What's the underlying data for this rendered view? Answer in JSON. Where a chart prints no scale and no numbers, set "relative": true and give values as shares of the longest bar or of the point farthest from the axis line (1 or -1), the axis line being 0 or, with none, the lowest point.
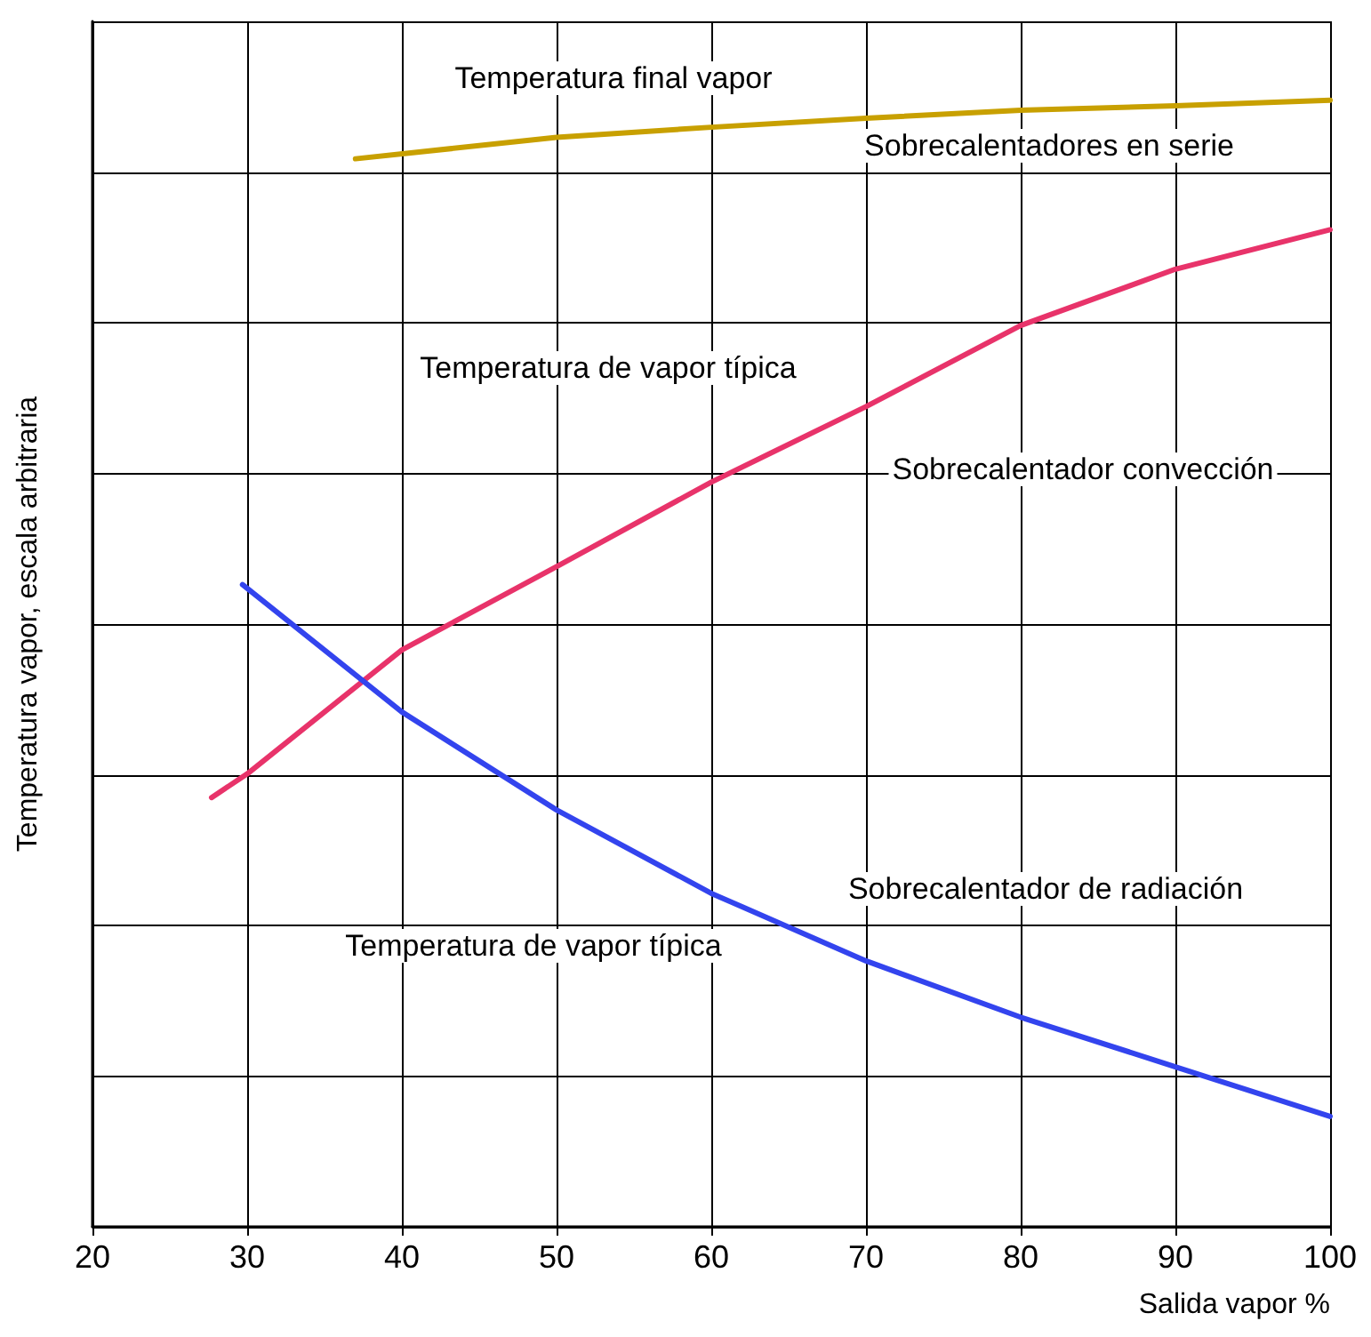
{
  "chart_data": {
    "type": "line",
    "relative": true,
    "xlabel": "Salida vapor %",
    "ylabel": "Temperatura vapor, escala arbitraria",
    "xlim": [
      20,
      100
    ],
    "xticks": [
      20,
      30,
      40,
      50,
      60,
      70,
      80,
      90,
      100
    ],
    "grid": true,
    "marker": "none",
    "line_style": "solid",
    "series": [
      {
        "color": "#c8a000",
        "x": [
          37,
          50,
          60,
          70,
          80,
          90,
          100
        ],
        "values": [
          0.948,
          0.967,
          0.976,
          0.984,
          0.991,
          0.995,
          1
        ]
      },
      {
        "color": "#e8336a",
        "x": [
          27.7,
          30,
          40,
          50,
          60,
          70,
          80,
          90,
          100
        ],
        "values": [
          0.381,
          0.402,
          0.512,
          0.586,
          0.661,
          0.728,
          0.8,
          0.85,
          0.885
        ]
      },
      {
        "color": "#3344ee",
        "x": [
          29.7,
          40,
          50,
          60,
          70,
          80,
          90,
          100
        ],
        "values": [
          0.57,
          0.457,
          0.37,
          0.296,
          0.236,
          0.186,
          0.142,
          0.098
        ]
      }
    ],
    "annotations": [
      "Temperatura final vapor",
      "Sobrecalentadores en serie",
      "Temperatura de vapor típica",
      "Sobrecalentador convección",
      "Temperatura de vapor típica",
      "Sobrecalentador de radiación"
    ]
  }
}
